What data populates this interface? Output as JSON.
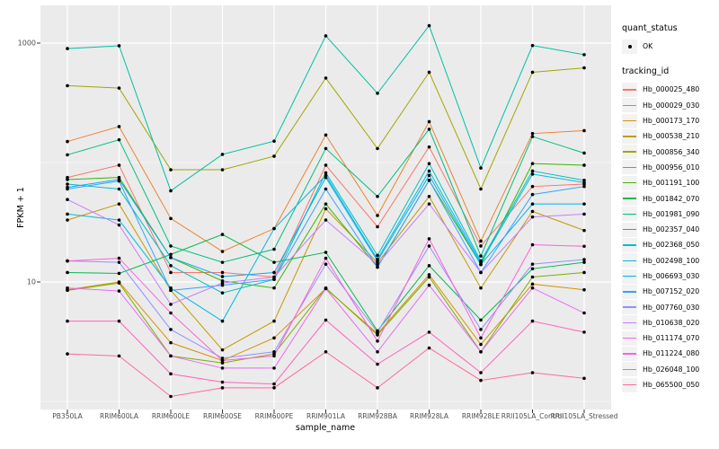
{
  "figure": {
    "y_axis": {
      "label": "FPKM + 1",
      "tick_top": "1000",
      "tick_bottom": "10"
    },
    "x_axis": {
      "label": "sample_name"
    },
    "legend": {
      "quant_status_title": "quant_status",
      "quant_status_ok_label": "OK",
      "tracking_id_title": "tracking_id"
    }
  },
  "chart_data": {
    "type": "line",
    "title": "",
    "xlabel": "sample_name",
    "ylabel": "FPKM + 1",
    "y_scale": "log10",
    "y_ticks": [
      10,
      1000
    ],
    "y_minor_gridlines": [
      1,
      100
    ],
    "ylim_log": [
      0.9,
      2000
    ],
    "grid": "on",
    "legend_position": "right",
    "panel_background": "#EBEBEB",
    "gridline_color": "#FFFFFF",
    "point_color": "#000000",
    "point_shape": "circle",
    "quant_status_title": "quant_status",
    "quant_status_value": "OK",
    "series_legend_title": "tracking_id",
    "x": [
      "PB350LA",
      "RRIM600LA",
      "RRIM600LE",
      "RRIM600SE",
      "RRIM600PE",
      "RRIM901LA",
      "RRIM928BA",
      "RRIM928LA",
      "RRIM928LE",
      "RRII105LA_Control",
      "RRII105LA_Stressed"
    ],
    "series": [
      {
        "name": "Hb_000025_480",
        "color": "#F8766D",
        "values": [
          75,
          95,
          12,
          12,
          11,
          95,
          29,
          135,
          20,
          63,
          66
        ]
      },
      {
        "name": "Hb_000029_030",
        "color": "#EA8331",
        "values": [
          150,
          200,
          34,
          18,
          28,
          170,
          36,
          220,
          22,
          175,
          185
        ]
      },
      {
        "name": "Hb_000173_170",
        "color": "#D89000",
        "values": [
          8.6,
          10,
          3.1,
          2.2,
          3.4,
          8.8,
          3.7,
          11.5,
          3.0,
          9.6,
          8.6
        ]
      },
      {
        "name": "Hb_000538_210",
        "color": "#C09B00",
        "values": [
          33,
          45,
          8.5,
          2.7,
          4.7,
          41,
          14.5,
          52,
          8.9,
          39,
          27
        ]
      },
      {
        "name": "Hb_000856_340",
        "color": "#A3A500",
        "values": [
          440,
          420,
          87,
          87,
          113,
          510,
          131,
          570,
          60,
          570,
          620
        ]
      },
      {
        "name": "Hb_000956_010",
        "color": "#7CAE00",
        "values": [
          8.5,
          9.8,
          2.4,
          2.1,
          2.5,
          8.9,
          3.6,
          11,
          2.6,
          11,
          12
        ]
      },
      {
        "name": "Hb_001191_100",
        "color": "#39B600",
        "values": [
          72,
          75,
          16,
          10.2,
          8.9,
          45,
          13.3,
          71,
          14,
          98,
          95
        ]
      },
      {
        "name": "Hb_001842_070",
        "color": "#00BB4E",
        "values": [
          12,
          11.8,
          17,
          25,
          14.6,
          17.7,
          3.9,
          13.7,
          4.8,
          12.9,
          14.6
        ]
      },
      {
        "name": "Hb_001981_090",
        "color": "#00BF7D",
        "values": [
          116,
          155,
          20,
          14.6,
          18.8,
          131,
          52,
          190,
          16.5,
          165,
          120
        ]
      },
      {
        "name": "Hb_002357_040",
        "color": "#00C1A3",
        "values": [
          900,
          950,
          58,
          117,
          151,
          1150,
          380,
          1400,
          90,
          955,
          800
        ]
      },
      {
        "name": "Hb_002368_050",
        "color": "#00BFC4",
        "values": [
          66,
          60,
          13.7,
          8.1,
          10.5,
          82,
          16.7,
          98,
          15,
          85,
          71
        ]
      },
      {
        "name": "Hb_002498_100",
        "color": "#00BAE0",
        "values": [
          37,
          33,
          8.9,
          4.7,
          28,
          78,
          15.5,
          85,
          14.5,
          80,
          68
        ]
      },
      {
        "name": "Hb_006693_030",
        "color": "#00B0F6",
        "values": [
          62,
          72,
          16,
          11.1,
          12,
          75,
          15,
          78,
          14,
          45,
          45
        ]
      },
      {
        "name": "Hb_007152_020",
        "color": "#35A2FF",
        "values": [
          60,
          70,
          8.5,
          9.4,
          10.5,
          60,
          13.3,
          71,
          12,
          54,
          63
        ]
      },
      {
        "name": "Hb_007760_030",
        "color": "#9590FF",
        "values": [
          15,
          14.6,
          4.0,
          2.3,
          2.6,
          14.1,
          3.8,
          20,
          4.0,
          14.1,
          15.4
        ]
      },
      {
        "name": "Hb_010638_020",
        "color": "#C77CFF",
        "values": [
          49,
          30,
          6.5,
          9.8,
          11,
          33,
          14,
          45,
          12,
          35,
          37
        ]
      },
      {
        "name": "Hb_011174_070",
        "color": "#E76BF3",
        "values": [
          8.9,
          8.4,
          2.4,
          1.9,
          1.9,
          8.8,
          2.6,
          9.4,
          2.6,
          8.9,
          5.5
        ]
      },
      {
        "name": "Hb_011224_080",
        "color": "#FA62DB",
        "values": [
          15,
          15.8,
          5.5,
          2.2,
          2.4,
          15.8,
          3.2,
          23,
          3.4,
          20.5,
          19.9
        ]
      },
      {
        "name": "Hb_026048_100",
        "color": "#FF62BC",
        "values": [
          4.7,
          4.7,
          1.7,
          1.45,
          1.4,
          4.8,
          2.05,
          3.8,
          1.74,
          4.7,
          3.8
        ]
      },
      {
        "name": "Hb_065500_050",
        "color": "#FF6A98",
        "values": [
          2.5,
          2.4,
          1.1,
          1.3,
          1.3,
          2.6,
          1.3,
          2.8,
          1.5,
          1.74,
          1.56
        ]
      }
    ]
  }
}
